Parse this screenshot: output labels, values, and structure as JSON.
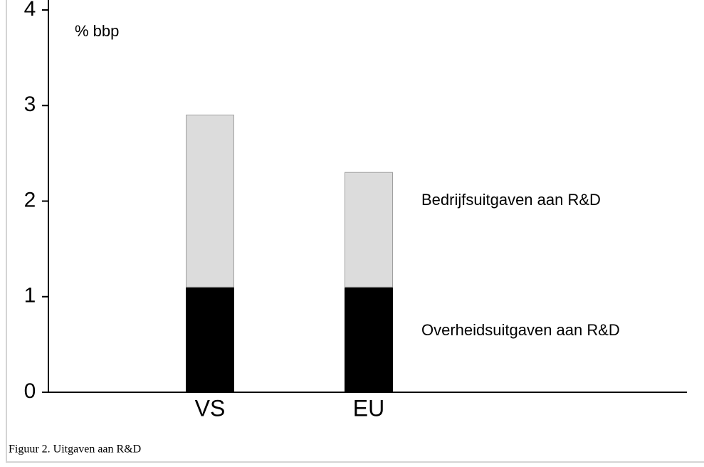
{
  "chart_data": {
    "type": "stacked-bar",
    "y_label": "% bbp",
    "caption": "Figuur 2. Uitgaven aan R&D",
    "categories": [
      "VS",
      "EU"
    ],
    "series": [
      {
        "name": "Overheidsuitgaven aan R&D",
        "color": "#000000",
        "values": [
          1.1,
          1.1
        ]
      },
      {
        "name": "Bedrijfsuitgaven aan R&D",
        "color": "#dcdcdc",
        "values": [
          1.8,
          1.2
        ]
      }
    ],
    "ylim": [
      0,
      4
    ],
    "yticks": [
      0,
      1,
      2,
      3,
      4
    ]
  }
}
